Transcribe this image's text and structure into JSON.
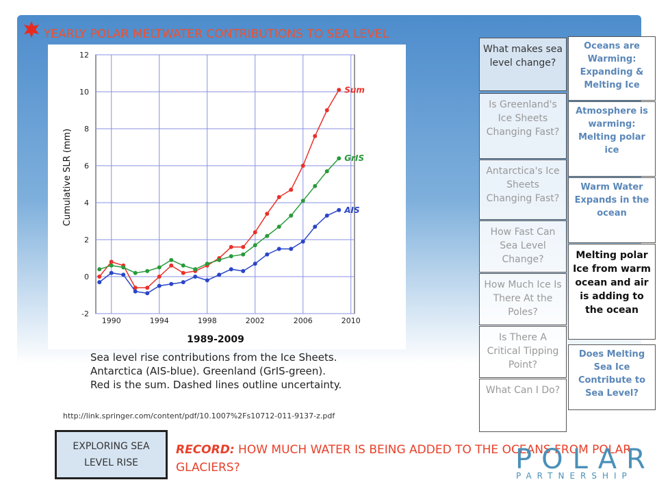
{
  "header": {
    "title": "YEARLY POLAR MELTWATER CONTRIBUTIONS TO SEA LEVEL"
  },
  "chart_data": {
    "type": "line",
    "ylabel": "Cumulative SLR (mm)",
    "xlabel": "1989-2009",
    "x": [
      1989,
      1990,
      1991,
      1992,
      1993,
      1994,
      1995,
      1996,
      1997,
      1998,
      1999,
      2000,
      2001,
      2002,
      2003,
      2004,
      2005,
      2006,
      2007,
      2008,
      2009
    ],
    "xlim": [
      1988.7,
      2010.3
    ],
    "xticks": [
      1990,
      1994,
      1998,
      2002,
      2006,
      2010
    ],
    "ylim": [
      -2,
      12
    ],
    "yticks": [
      -2,
      0,
      2,
      4,
      6,
      8,
      10,
      12
    ],
    "grid": true,
    "series": [
      {
        "name": "Sum",
        "color": "#e8312a",
        "values": [
          0.0,
          0.8,
          0.6,
          -0.6,
          -0.6,
          0.0,
          0.6,
          0.2,
          0.3,
          0.6,
          1.0,
          1.6,
          1.6,
          2.4,
          3.4,
          4.3,
          4.7,
          6.0,
          7.6,
          9.0,
          10.1
        ]
      },
      {
        "name": "GrIS",
        "color": "#2a9a3a",
        "values": [
          0.4,
          0.6,
          0.5,
          0.2,
          0.3,
          0.5,
          0.9,
          0.6,
          0.4,
          0.7,
          0.9,
          1.1,
          1.2,
          1.7,
          2.2,
          2.7,
          3.3,
          4.1,
          4.9,
          5.7,
          6.4
        ]
      },
      {
        "name": "AIS",
        "color": "#2a45c8",
        "values": [
          -0.3,
          0.2,
          0.1,
          -0.8,
          -0.9,
          -0.5,
          -0.4,
          -0.3,
          0.0,
          -0.2,
          0.1,
          0.4,
          0.3,
          0.7,
          1.2,
          1.5,
          1.5,
          1.9,
          2.7,
          3.3,
          3.6
        ]
      }
    ]
  },
  "caption": [
    "Sea level rise contributions from the Ice Sheets.",
    "Antarctica (AIS-blue). Greenland (GrIS-green).",
    "Red is the sum. Dashed lines outline uncertainty."
  ],
  "link": "http://link.springer.com/content/pdf/10.1007%2Fs10712-011-9137-z.pdf",
  "nav": [
    "What makes sea level change?",
    "Is Greenland's Ice Sheets Changing Fast?",
    "Antarctica's Ice Sheets Changing Fast?",
    "How Fast Can Sea Level Change?",
    "How Much Ice Is There At the Poles?",
    "Is There A Critical Tipping Point?",
    "What Can I Do?"
  ],
  "side": [
    "Oceans are Warming: Expanding & Melting Ice",
    "Atmosphere is warming: Melting polar ice",
    "Warm Water Expands in the ocean",
    "Melting polar Ice from warm ocean and air is adding to the ocean",
    "Does Melting Sea Ice Contribute to Sea Level?"
  ],
  "button": "EXPLORING SEA LEVEL RISE",
  "record": {
    "label": "RECORD:",
    "text": "HOW MUCH WATER IS BEING ADDED TO THE OCEANS FROM POLAR GLACIERS?"
  },
  "logo": {
    "name": "POLAR",
    "sub": "PARTNERSHIP"
  }
}
